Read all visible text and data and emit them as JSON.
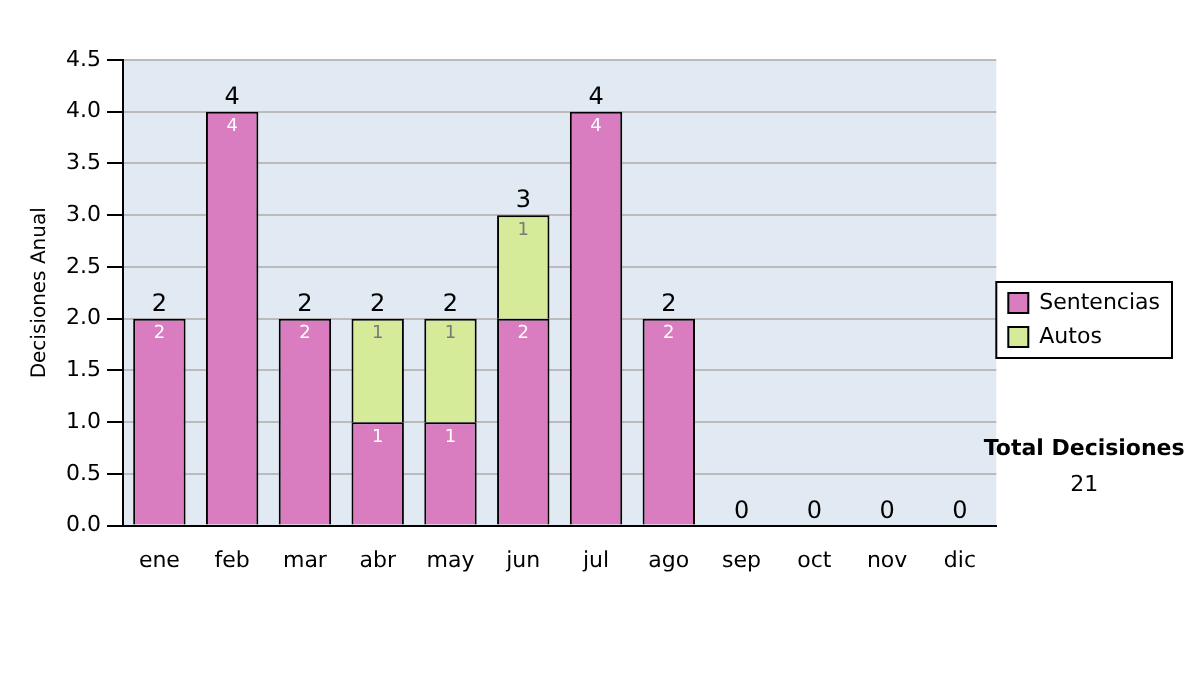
{
  "chart_data": {
    "type": "bar",
    "stacked": true,
    "ylabel": "Decisiones Anual",
    "categories": [
      "ene",
      "feb",
      "mar",
      "abr",
      "may",
      "jun",
      "jul",
      "ago",
      "sep",
      "oct",
      "nov",
      "dic"
    ],
    "series": [
      {
        "name": "Sentencias",
        "color": "#d97dc0",
        "values": [
          2,
          4,
          2,
          1,
          1,
          2,
          4,
          2,
          0,
          0,
          0,
          0
        ],
        "value_labels": [
          "2",
          "4",
          "2",
          "1",
          "1",
          "2",
          "4",
          "2",
          null,
          null,
          null,
          null
        ]
      },
      {
        "name": "Autos",
        "color": "#d6eb9a",
        "values": [
          0,
          0,
          0,
          1,
          1,
          1,
          0,
          0,
          0,
          0,
          0,
          0
        ],
        "value_labels": [
          null,
          null,
          null,
          "1",
          "1",
          "1",
          null,
          null,
          null,
          null,
          null,
          null
        ]
      }
    ],
    "totals": [
      "2",
      "4",
      "2",
      "2",
      "2",
      "3",
      "4",
      "2",
      "0",
      "0",
      "0",
      "0"
    ],
    "ylim": [
      0,
      4.5
    ],
    "yticks": [
      {
        "value": 0,
        "label": "0.0"
      },
      0.5,
      {
        "value": 1,
        "label": "1.0"
      },
      1.5,
      {
        "value": 2,
        "label": "2.0"
      },
      2.5,
      {
        "value": 3,
        "label": "3.0"
      },
      3.5,
      {
        "value": 4,
        "label": "4.0"
      },
      4.5
    ],
    "grid": "y",
    "legend": "right",
    "annotations": [
      "Total Decisiones",
      "21"
    ]
  }
}
